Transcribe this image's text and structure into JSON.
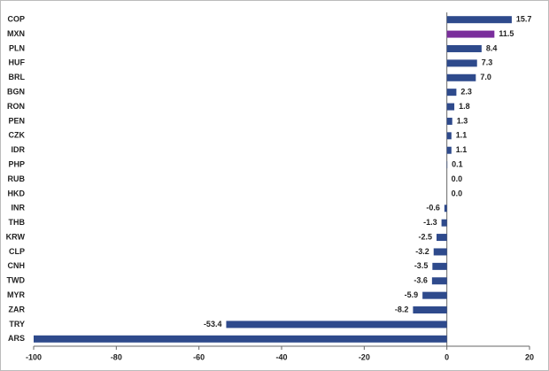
{
  "chart_data": {
    "type": "bar",
    "orientation": "horizontal",
    "categories": [
      "COP",
      "MXN",
      "PLN",
      "HUF",
      "BRL",
      "BGN",
      "RON",
      "PEN",
      "CZK",
      "IDR",
      "PHP",
      "RUB",
      "HKD",
      "INR",
      "THB",
      "KRW",
      "CLP",
      "CNH",
      "TWD",
      "MYR",
      "ZAR",
      "TRY",
      "ARS"
    ],
    "values": [
      15.7,
      11.5,
      8.4,
      7.3,
      7.0,
      2.3,
      1.8,
      1.3,
      1.1,
      1.1,
      0.1,
      0.0,
      0.0,
      -0.6,
      -1.3,
      -2.5,
      -3.2,
      -3.5,
      -3.6,
      -5.9,
      -8.2,
      -53.4,
      -100
    ],
    "value_labels": [
      "15.7",
      "11.5",
      "8.4",
      "7.3",
      "7.0",
      "2.3",
      "1.8",
      "1.3",
      "1.1",
      "1.1",
      "0.1",
      "0.0",
      "0.0",
      "-0.6",
      "-1.3",
      "-2.5",
      "-3.2",
      "-3.5",
      "-3.6",
      "-5.9",
      "-8.2",
      "-53.4",
      null
    ],
    "colors": [
      "#2e4a8c",
      "#7a2e9c",
      "#2e4a8c",
      "#2e4a8c",
      "#2e4a8c",
      "#2e4a8c",
      "#2e4a8c",
      "#2e4a8c",
      "#2e4a8c",
      "#2e4a8c",
      "#2e4a8c",
      "#2e4a8c",
      "#2e4a8c",
      "#2e4a8c",
      "#2e4a8c",
      "#2e4a8c",
      "#2e4a8c",
      "#2e4a8c",
      "#2e4a8c",
      "#2e4a8c",
      "#2e4a8c",
      "#2e4a8c",
      "#2e4a8c"
    ],
    "xlim": [
      -100,
      20
    ],
    "xticks": [
      -100,
      -80,
      -60,
      -40,
      -20,
      0,
      20
    ],
    "grid": false
  }
}
